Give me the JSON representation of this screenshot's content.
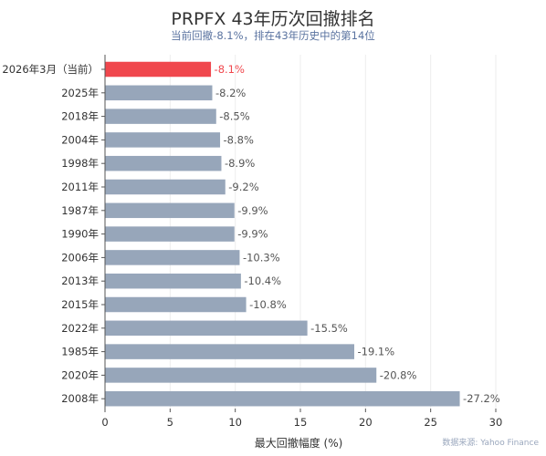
{
  "chart_data": {
    "type": "bar",
    "orientation": "horizontal",
    "title": "PRPFX 43年历次回撤排名",
    "subtitle": "当前回撤-8.1%，排在43年历史中的第14位",
    "xlabel": "最大回撤幅度 (%)",
    "ylabel": "",
    "xlim": [
      0,
      30
    ],
    "xticks": [
      "0",
      "5",
      "10",
      "15",
      "20",
      "25",
      "30"
    ],
    "grid": true,
    "source": "数据来源: Yahoo Finance",
    "categories": [
      "2026年3月（当前）",
      "2025年",
      "2018年",
      "2004年",
      "1998年",
      "2011年",
      "1987年",
      "1990年",
      "2006年",
      "2013年",
      "2015年",
      "2022年",
      "1985年",
      "2020年",
      "2008年"
    ],
    "values": [
      8.1,
      8.2,
      8.5,
      8.8,
      8.9,
      9.2,
      9.9,
      9.9,
      10.3,
      10.4,
      10.8,
      15.5,
      19.1,
      20.8,
      27.2
    ],
    "labels": [
      "-8.1%",
      "-8.2%",
      "-8.5%",
      "-8.8%",
      "-8.9%",
      "-9.2%",
      "-9.9%",
      "-9.9%",
      "-10.3%",
      "-10.4%",
      "-10.8%",
      "-15.5%",
      "-19.1%",
      "-20.8%",
      "-27.2%"
    ],
    "highlight_index": 0,
    "colors": {
      "highlight": "#f0474d",
      "bar": "#97a6ba",
      "highlight_label": "#f0474d",
      "label": "#555555"
    }
  }
}
